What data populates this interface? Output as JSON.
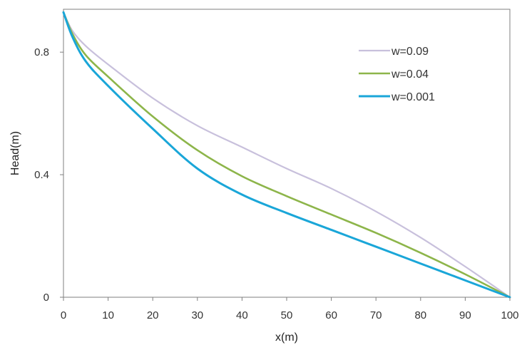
{
  "chart_data": {
    "type": "line",
    "title": "",
    "xlabel": "x(m)",
    "ylabel": "Head(m)",
    "xlim": [
      0,
      100
    ],
    "ylim": [
      0,
      0.94
    ],
    "xticks": [
      0,
      10,
      20,
      30,
      40,
      50,
      60,
      70,
      80,
      90,
      100
    ],
    "xtick_labels": [
      "0",
      "10",
      "20",
      "30",
      "40",
      "50",
      "60",
      "70",
      "80",
      "90",
      "100"
    ],
    "yticks": [
      0,
      0.4,
      0.8
    ],
    "ytick_labels": [
      "0",
      "0.4",
      "0.8"
    ],
    "grid": false,
    "legend_position": "top-right",
    "series": [
      {
        "name": "w=0.09",
        "color": "#c8c0dc",
        "x": [
          0,
          2,
          5,
          10,
          20,
          30,
          40,
          50,
          60,
          70,
          80,
          90,
          100
        ],
        "y": [
          0.93,
          0.87,
          0.82,
          0.76,
          0.65,
          0.56,
          0.49,
          0.42,
          0.355,
          0.28,
          0.195,
          0.1,
          0
        ]
      },
      {
        "name": "w=0.04",
        "color": "#8db54a",
        "x": [
          0,
          2,
          5,
          10,
          20,
          30,
          40,
          50,
          60,
          70,
          80,
          90,
          100
        ],
        "y": [
          0.93,
          0.86,
          0.79,
          0.72,
          0.59,
          0.48,
          0.395,
          0.33,
          0.27,
          0.21,
          0.145,
          0.075,
          0
        ]
      },
      {
        "name": "w=0.001",
        "color": "#1aa6d8",
        "x": [
          0,
          2,
          5,
          10,
          20,
          30,
          40,
          50,
          60,
          70,
          80,
          90,
          100
        ],
        "y": [
          0.93,
          0.85,
          0.77,
          0.69,
          0.55,
          0.42,
          0.335,
          0.275,
          0.22,
          0.165,
          0.11,
          0.055,
          0
        ]
      }
    ]
  }
}
